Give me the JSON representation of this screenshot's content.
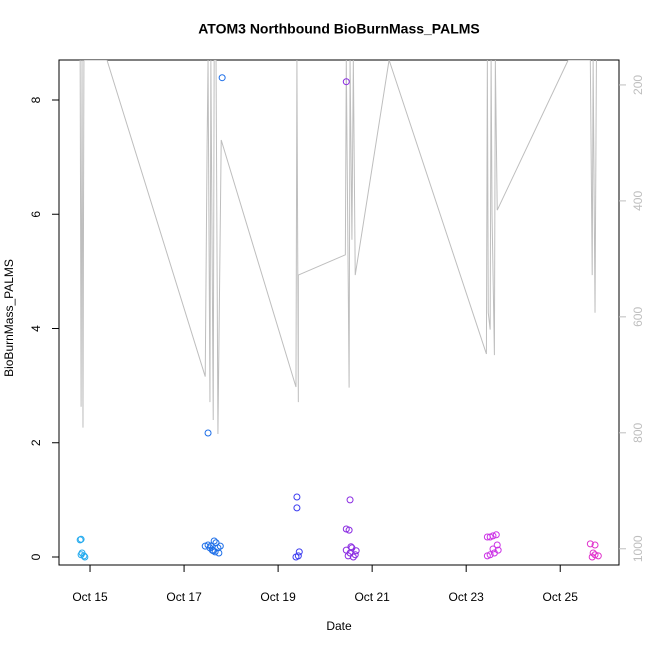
{
  "chart_data": {
    "type": "scatter",
    "title": "ATOM3 Northbound BioBurnMass_PALMS",
    "xlabel": "Date",
    "ylabel": "BioBurnMass_PALMS",
    "xlim": [
      14.34,
      26.25
    ],
    "xticks": [
      {
        "value": 15,
        "label": "Oct 15"
      },
      {
        "value": 17,
        "label": "Oct 17"
      },
      {
        "value": 19,
        "label": "Oct 19"
      },
      {
        "value": 21,
        "label": "Oct 21"
      },
      {
        "value": 23,
        "label": "Oct 23"
      },
      {
        "value": 25,
        "label": "Oct 25"
      }
    ],
    "ylim": [
      -0.14,
      8.7
    ],
    "yticks": [
      0,
      2,
      4,
      6,
      8
    ],
    "y2lim": [
      1028,
      157
    ],
    "y2ticks": [
      200,
      400,
      600,
      800,
      1000
    ],
    "series": [
      {
        "type": "line",
        "axis": "y2",
        "color": "#bebebe",
        "x": [
          14.79,
          14.81,
          14.83,
          14.85,
          14.87,
          15.36,
          17.45,
          17.49,
          17.51,
          17.55,
          17.57,
          17.62,
          17.64,
          17.68,
          17.72,
          17.79,
          19.38,
          19.4,
          19.43,
          19.43,
          20.43,
          20.45,
          20.49,
          20.51,
          20.53,
          20.57,
          20.6,
          20.64,
          21.36,
          23.43,
          23.45,
          23.47,
          23.51,
          23.53,
          23.55,
          23.6,
          23.62,
          23.66,
          25.17,
          25.64,
          25.68,
          25.7,
          25.74,
          25.77
        ],
        "values": [
          157,
          755,
          157,
          791,
          157,
          157,
          703,
          303,
          157,
          747,
          157,
          778,
          157,
          157,
          802,
          295,
          721,
          157,
          747,
          528,
          493,
          157,
          528,
          722,
          157,
          467,
          157,
          528,
          157,
          664,
          157,
          593,
          622,
          157,
          424,
          666,
          157,
          416,
          157,
          157,
          528,
          157,
          593,
          157
        ]
      },
      {
        "type": "scatter",
        "color": "#22aaee",
        "x": [
          14.79,
          14.81,
          14.83,
          14.87,
          14.89,
          14.81
        ],
        "values": [
          0.3,
          0.31,
          0.07,
          0.02,
          0,
          0.04
        ]
      },
      {
        "type": "scatter",
        "color": "#1e6fe8",
        "x": [
          17.51,
          17.81,
          17.45,
          17.51,
          17.57,
          17.64,
          17.68,
          17.6,
          17.66,
          17.72,
          17.77,
          17.62,
          17.55,
          17.74
        ],
        "values": [
          2.17,
          8.39,
          0.19,
          0.21,
          0.19,
          0.28,
          0.25,
          0.12,
          0.09,
          0.16,
          0.19,
          0.11,
          0.16,
          0.07
        ]
      },
      {
        "type": "scatter",
        "color": "#3c3cf0",
        "x": [
          19.4,
          19.4,
          19.38,
          19.45,
          19.43
        ],
        "values": [
          1.05,
          0.86,
          0,
          0.09,
          0.02
        ]
      },
      {
        "type": "scatter",
        "color": "#8a2be2",
        "x": [
          20.45,
          20.53,
          20.45,
          20.51,
          20.45,
          20.53,
          20.57,
          20.64,
          20.49,
          20.6,
          20.66,
          20.55
        ],
        "values": [
          8.32,
          1.0,
          0.49,
          0.47,
          0.12,
          0.07,
          0.16,
          0.04,
          0.02,
          0,
          0.11,
          0.18
        ]
      },
      {
        "type": "scatter",
        "color": "#cc33e6",
        "x": [
          23.45,
          23.51,
          23.57,
          23.64,
          23.66,
          23.57,
          23.45,
          23.51,
          23.6,
          23.68
        ],
        "values": [
          0.35,
          0.35,
          0.37,
          0.39,
          0.21,
          0.14,
          0.02,
          0.04,
          0.07,
          0.12
        ]
      },
      {
        "type": "scatter",
        "color": "#e032cc",
        "x": [
          25.64,
          25.74,
          25.7,
          25.74,
          25.81,
          25.68
        ],
        "values": [
          0.23,
          0.21,
          0.07,
          0.04,
          0.02,
          0
        ]
      }
    ]
  }
}
